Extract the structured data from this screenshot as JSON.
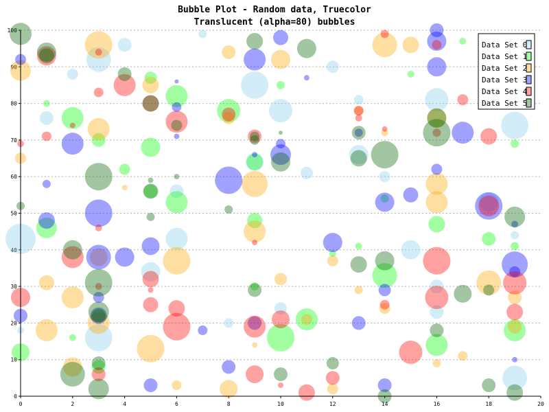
{
  "chart_data": {
    "type": "scatter",
    "title": "Bubble Plot - Random data, Truecolor",
    "subtitle": "Translucent (alpha=80) bubbles",
    "xlabel": "",
    "ylabel": "",
    "xlim": [
      0,
      20
    ],
    "ylim": [
      0,
      100
    ],
    "x_ticks": [
      "0",
      "2",
      "4",
      "6",
      "8",
      "10",
      "12",
      "14",
      "16",
      "18",
      "20"
    ],
    "y_ticks": [
      "0",
      "10",
      "20",
      "30",
      "40",
      "50",
      "60",
      "70",
      "80",
      "90",
      "100"
    ],
    "grid": "horizontal dashed",
    "legend_position": "top-right",
    "alpha": 80,
    "series": [
      {
        "name": "Data Set 0",
        "color": "#87ceeb",
        "points": [
          [
            0,
            43,
            22
          ],
          [
            3,
            92,
            18
          ],
          [
            6,
            43,
            16
          ],
          [
            9,
            85,
            20
          ],
          [
            10,
            78,
            17
          ],
          [
            13,
            66,
            14
          ],
          [
            15,
            40,
            14
          ],
          [
            16,
            81,
            17
          ],
          [
            19,
            74,
            20
          ],
          [
            19,
            5,
            18
          ],
          [
            3,
            16,
            20
          ],
          [
            5,
            34,
            14
          ],
          [
            4,
            96,
            10
          ],
          [
            2,
            88,
            8
          ],
          [
            12,
            90,
            9
          ],
          [
            11,
            61,
            9
          ],
          [
            9,
            64,
            13
          ],
          [
            18,
            53,
            14
          ],
          [
            16,
            30,
            10
          ],
          [
            1,
            76,
            10
          ],
          [
            8,
            20,
            7
          ],
          [
            10,
            24,
            9
          ],
          [
            14,
            60,
            8
          ],
          [
            0,
            18,
            5
          ],
          [
            6,
            56,
            10
          ],
          [
            16,
            23,
            10
          ],
          [
            13,
            81,
            7
          ],
          [
            7,
            99,
            6
          ],
          [
            19,
            44,
            6
          ]
        ]
      },
      {
        "name": "Data Set 1",
        "color": "#00ff00",
        "points": [
          [
            0,
            12,
            13
          ],
          [
            1,
            46,
            15
          ],
          [
            2,
            76,
            16
          ],
          [
            3,
            70,
            10
          ],
          [
            5,
            68,
            14
          ],
          [
            6,
            53,
            16
          ],
          [
            6,
            82,
            16
          ],
          [
            8,
            78,
            17
          ],
          [
            9,
            64,
            12
          ],
          [
            10,
            16,
            20
          ],
          [
            11,
            21,
            16
          ],
          [
            14,
            33,
            18
          ],
          [
            16,
            14,
            16
          ],
          [
            19,
            18,
            16
          ],
          [
            16,
            47,
            12
          ],
          [
            5,
            87,
            9
          ],
          [
            3,
            8,
            10
          ],
          [
            2,
            16,
            5
          ],
          [
            9,
            48,
            11
          ],
          [
            18,
            43,
            10
          ],
          [
            10,
            85,
            6
          ],
          [
            17,
            97,
            5
          ],
          [
            4,
            62,
            8
          ],
          [
            5,
            56,
            10
          ],
          [
            19,
            69,
            6
          ],
          [
            14,
            54,
            6
          ],
          [
            9,
            30,
            6
          ],
          [
            12,
            39,
            5
          ],
          [
            19,
            41,
            6
          ],
          [
            1,
            80,
            5
          ],
          [
            13,
            41,
            5
          ],
          [
            15,
            88,
            5
          ]
        ]
      },
      {
        "name": "Data Set 2",
        "color": "#ffa500",
        "points": [
          [
            0,
            89,
            15
          ],
          [
            1,
            31,
            11
          ],
          [
            1,
            18,
            16
          ],
          [
            2,
            27,
            16
          ],
          [
            2,
            8,
            14
          ],
          [
            3,
            96,
            20
          ],
          [
            3,
            73,
            16
          ],
          [
            3,
            38,
            13
          ],
          [
            5,
            13,
            20
          ],
          [
            6,
            37,
            20
          ],
          [
            8,
            2,
            13
          ],
          [
            9,
            58,
            19
          ],
          [
            9,
            45,
            16
          ],
          [
            10,
            92,
            14
          ],
          [
            10,
            32,
            9
          ],
          [
            11,
            21,
            8
          ],
          [
            12,
            37,
            8
          ],
          [
            13,
            29,
            6
          ],
          [
            14,
            96,
            18
          ],
          [
            15,
            96,
            12
          ],
          [
            16,
            58,
            16
          ],
          [
            16,
            53,
            16
          ],
          [
            17,
            11,
            7
          ],
          [
            18,
            31,
            18
          ],
          [
            19,
            27,
            10
          ],
          [
            0,
            65,
            8
          ],
          [
            5,
            85,
            12
          ],
          [
            8,
            94,
            10
          ],
          [
            6,
            3,
            7
          ],
          [
            4,
            57,
            4
          ],
          [
            14,
            24,
            8
          ],
          [
            16,
            9,
            6
          ],
          [
            16,
            76,
            14
          ],
          [
            3,
            20,
            16
          ],
          [
            19,
            19,
            10
          ],
          [
            12,
            2,
            8
          ],
          [
            13,
            78,
            7
          ],
          [
            14,
            72,
            5
          ],
          [
            8,
            76,
            9
          ],
          [
            9,
            14,
            4
          ]
        ]
      },
      {
        "name": "Data Set 3",
        "color": "#0000ff",
        "points": [
          [
            0,
            22,
            10
          ],
          [
            0,
            92,
            8
          ],
          [
            1,
            48,
            12
          ],
          [
            2,
            69,
            16
          ],
          [
            3,
            50,
            20
          ],
          [
            3,
            38,
            18
          ],
          [
            4,
            38,
            14
          ],
          [
            5,
            41,
            13
          ],
          [
            5,
            3,
            10
          ],
          [
            6,
            79,
            7
          ],
          [
            7,
            18,
            7
          ],
          [
            8,
            59,
            20
          ],
          [
            8,
            8,
            10
          ],
          [
            9,
            92,
            16
          ],
          [
            9,
            20,
            10
          ],
          [
            10,
            98,
            11
          ],
          [
            10,
            66,
            15
          ],
          [
            12,
            42,
            14
          ],
          [
            13,
            20,
            10
          ],
          [
            14,
            53,
            14
          ],
          [
            14,
            3,
            10
          ],
          [
            15,
            55,
            11
          ],
          [
            16,
            97,
            14
          ],
          [
            16,
            90,
            14
          ],
          [
            16,
            62,
            8
          ],
          [
            17,
            72,
            16
          ],
          [
            18,
            52,
            20
          ],
          [
            19,
            36,
            19
          ],
          [
            19,
            34,
            8
          ],
          [
            19,
            10,
            4
          ],
          [
            1,
            58,
            6
          ],
          [
            9,
            66,
            4
          ],
          [
            10,
            69,
            7
          ],
          [
            11,
            87,
            4
          ],
          [
            14,
            29,
            9
          ],
          [
            3,
            22,
            12
          ],
          [
            3,
            27,
            8
          ],
          [
            6,
            71,
            4
          ],
          [
            6,
            86,
            3
          ],
          [
            13,
            72,
            6
          ],
          [
            16,
            100,
            10
          ],
          [
            19,
            47,
            5
          ]
        ]
      },
      {
        "name": "Data Set 4",
        "color": "#ff0000",
        "points": [
          [
            0,
            69,
            5
          ],
          [
            0,
            27,
            14
          ],
          [
            1,
            93,
            14
          ],
          [
            1,
            71,
            7
          ],
          [
            2,
            38,
            16
          ],
          [
            2,
            74,
            4
          ],
          [
            3,
            83,
            7
          ],
          [
            3,
            30,
            5
          ],
          [
            3,
            6,
            10
          ],
          [
            4,
            85,
            16
          ],
          [
            5,
            80,
            12
          ],
          [
            5,
            32,
            12
          ],
          [
            5,
            25,
            11
          ],
          [
            6,
            75,
            16
          ],
          [
            6,
            24,
            12
          ],
          [
            6,
            19,
            20
          ],
          [
            8,
            77,
            10
          ],
          [
            9,
            71,
            10
          ],
          [
            9,
            19,
            16
          ],
          [
            9,
            6,
            13
          ],
          [
            9,
            42,
            4
          ],
          [
            10,
            21,
            13
          ],
          [
            10,
            3,
            4
          ],
          [
            11,
            1,
            12
          ],
          [
            12,
            5,
            10
          ],
          [
            13,
            78,
            7
          ],
          [
            14,
            99,
            6
          ],
          [
            14,
            25,
            7
          ],
          [
            15,
            12,
            17
          ],
          [
            16,
            37,
            20
          ],
          [
            16,
            27,
            17
          ],
          [
            17,
            81,
            8
          ],
          [
            18,
            71,
            12
          ],
          [
            18,
            52,
            15
          ],
          [
            19,
            31,
            17
          ],
          [
            19,
            23,
            12
          ],
          [
            3,
            94,
            5
          ],
          [
            16,
            96,
            7
          ],
          [
            13,
            76,
            5
          ],
          [
            14,
            73,
            4
          ],
          [
            3,
            46,
            5
          ],
          [
            5,
            29,
            4
          ],
          [
            16,
            72,
            6
          ]
        ]
      },
      {
        "name": "Data Set 5",
        "color": "#006400",
        "points": [
          [
            0,
            99,
            16
          ],
          [
            0,
            52,
            6
          ],
          [
            1,
            94,
            14
          ],
          [
            1,
            93,
            11
          ],
          [
            2,
            40,
            14
          ],
          [
            2,
            6,
            18
          ],
          [
            3,
            60,
            20
          ],
          [
            3,
            31,
            20
          ],
          [
            3,
            23,
            15
          ],
          [
            3,
            2,
            15
          ],
          [
            4,
            88,
            10
          ],
          [
            5,
            59,
            4
          ],
          [
            5,
            49,
            6
          ],
          [
            5,
            56,
            11
          ],
          [
            5,
            80,
            12
          ],
          [
            6,
            60,
            4
          ],
          [
            8,
            51,
            6
          ],
          [
            9,
            97,
            12
          ],
          [
            9,
            70,
            7
          ],
          [
            9,
            29,
            10
          ],
          [
            10,
            64,
            14
          ],
          [
            10,
            6,
            10
          ],
          [
            11,
            95,
            14
          ],
          [
            12,
            9,
            9
          ],
          [
            13,
            36,
            12
          ],
          [
            13,
            72,
            10
          ],
          [
            13,
            65,
            12
          ],
          [
            14,
            66,
            20
          ],
          [
            14,
            37,
            14
          ],
          [
            14,
            0,
            10
          ],
          [
            16,
            76,
            14
          ],
          [
            16,
            72,
            20
          ],
          [
            17,
            28,
            13
          ],
          [
            18,
            29,
            8
          ],
          [
            18,
            3,
            10
          ],
          [
            19,
            49,
            15
          ],
          [
            19,
            1,
            12
          ],
          [
            10,
            72,
            3
          ],
          [
            16,
            18,
            10
          ],
          [
            3,
            9,
            10
          ],
          [
            3,
            22,
            10
          ],
          [
            9,
            71,
            7
          ],
          [
            6,
            74,
            8
          ]
        ]
      }
    ]
  }
}
